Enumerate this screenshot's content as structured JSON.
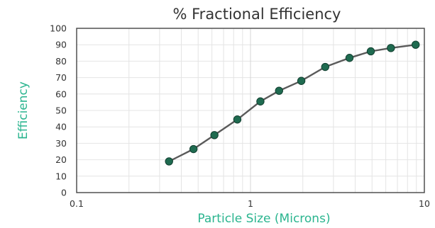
{
  "chart_data": {
    "type": "line",
    "title": "% Fractional Efficiency",
    "xlabel": "Particle Size (Microns)",
    "ylabel": "Efficiency",
    "x_scale": "log",
    "xlim": [
      0.1,
      10
    ],
    "ylim": [
      0,
      100
    ],
    "x_ticks": [
      {
        "value": 0.1,
        "label": "0.1"
      },
      {
        "value": 1,
        "label": "1"
      },
      {
        "value": 10,
        "label": "10"
      }
    ],
    "y_ticks": [
      {
        "value": 0,
        "label": "0"
      },
      {
        "value": 10,
        "label": "10"
      },
      {
        "value": 20,
        "label": "20"
      },
      {
        "value": 30,
        "label": "30"
      },
      {
        "value": 40,
        "label": "40"
      },
      {
        "value": 50,
        "label": "50"
      },
      {
        "value": 60,
        "label": "60"
      },
      {
        "value": 70,
        "label": "70"
      },
      {
        "value": 80,
        "label": "80"
      },
      {
        "value": 90,
        "label": "90"
      },
      {
        "value": 100,
        "label": "100"
      }
    ],
    "grid": true,
    "legend": "none",
    "series": [
      {
        "x": [
          0.34,
          0.47,
          0.62,
          0.84,
          1.14,
          1.46,
          1.96,
          2.69,
          3.71,
          4.92,
          6.42,
          8.91
        ],
        "y": [
          19,
          26.5,
          35,
          44.5,
          55.5,
          62,
          68,
          76.5,
          82,
          86,
          88,
          90
        ]
      }
    ],
    "colors": {
      "title": "#333333",
      "axis_label": "#2bb58f",
      "marker_fill": "#1f6b50",
      "marker_stroke": "#123f30",
      "line": "#5a5a5a",
      "grid": "#e4e4e4",
      "frame": "#444444"
    }
  }
}
